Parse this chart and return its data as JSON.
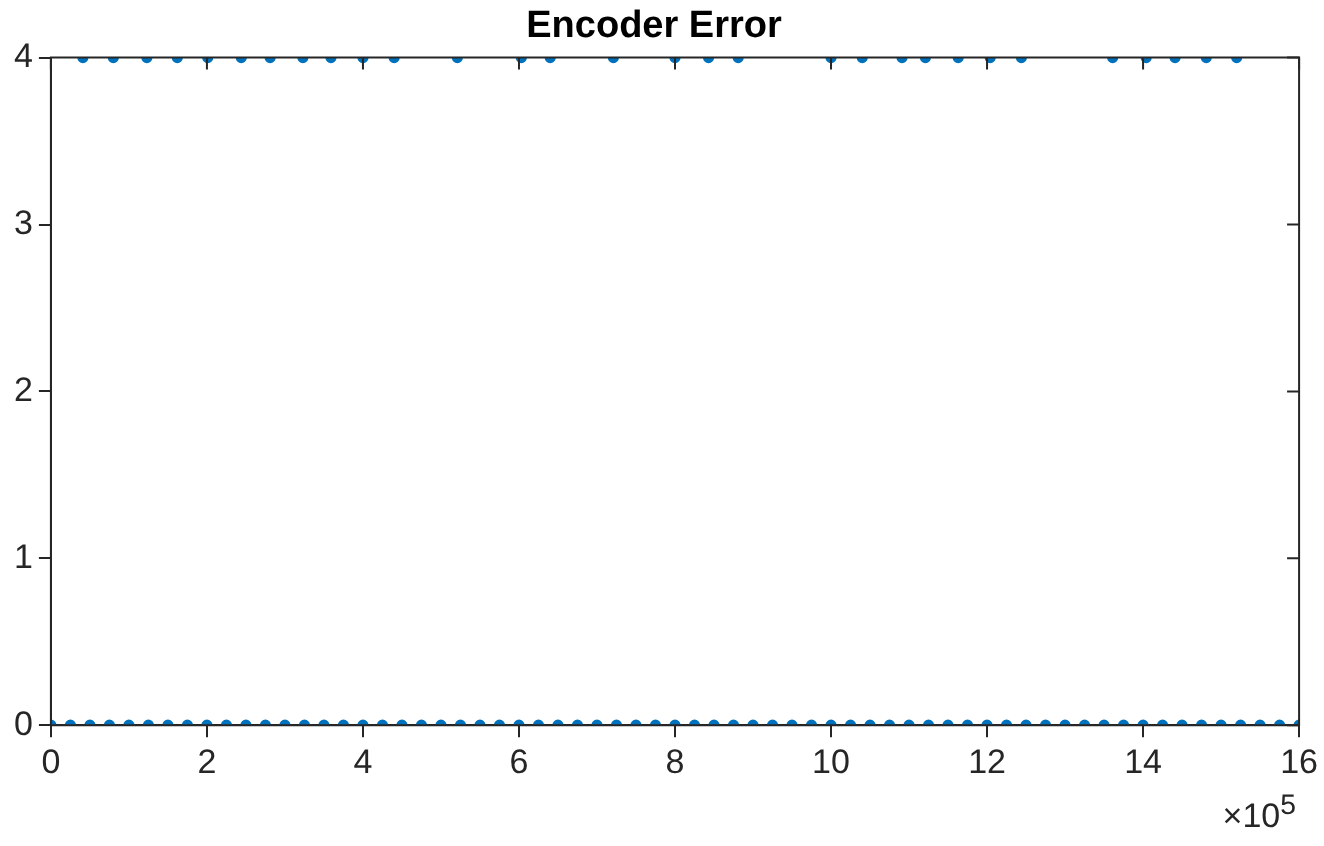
{
  "chart_data": {
    "type": "scatter",
    "title": "Encoder Error",
    "annotations": [
      "×10$^{5}$"
    ],
    "xlim": [
      0,
      16
    ],
    "xticks": [
      0,
      2,
      4,
      6,
      8,
      10,
      12,
      14,
      16
    ],
    "ylim": [
      0,
      4
    ],
    "yticks": [
      0,
      1,
      2,
      3,
      4
    ],
    "grid": false,
    "legend": false,
    "marker": "circle",
    "series": [
      {
        "color": "#0072bd",
        "x": [
          0,
          0.25,
          0.5,
          0.75,
          1,
          1.25,
          1.5,
          1.75,
          2,
          2.25,
          2.5,
          2.75,
          3,
          3.25,
          3.5,
          3.75,
          4,
          4.25,
          4.5,
          4.75,
          5,
          5.25,
          5.5,
          5.75,
          6,
          6.25,
          6.5,
          6.75,
          7,
          7.25,
          7.5,
          7.75,
          8,
          8.25,
          8.5,
          8.75,
          9,
          9.25,
          9.5,
          9.75,
          10,
          10.25,
          10.5,
          10.75,
          11,
          11.25,
          11.5,
          11.75,
          12,
          12.25,
          12.5,
          12.75,
          13,
          13.25,
          13.5,
          13.75,
          14,
          14.25,
          14.5,
          14.75,
          15,
          15.25,
          15.5,
          15.75,
          16
        ],
        "values": [
          0,
          0,
          0,
          0,
          0,
          0,
          0,
          0,
          0,
          0,
          0,
          0,
          0,
          0,
          0,
          0,
          0,
          0,
          0,
          0,
          0,
          0,
          0,
          0,
          0,
          0,
          0,
          0,
          0,
          0,
          0,
          0,
          0,
          0,
          0,
          0,
          0,
          0,
          0,
          0,
          0,
          0,
          0,
          0,
          0,
          0,
          0,
          0,
          0,
          0,
          0,
          0,
          0,
          0,
          0,
          0,
          0,
          0,
          0,
          0,
          0,
          0,
          0,
          0,
          0
        ]
      },
      {
        "color": "#0072bd",
        "x": [
          0.41,
          0.8,
          1.23,
          1.62,
          2.01,
          2.44,
          2.81,
          3.23,
          3.59,
          4,
          4.4,
          5.21,
          6.03,
          6.4,
          7.21,
          8,
          8.43,
          8.81,
          10,
          10.4,
          10.91,
          11.21,
          11.63,
          12.04,
          12.44,
          13.61,
          14.04,
          14.41,
          14.81,
          15.2
        ],
        "values": [
          4,
          4,
          4,
          4,
          4,
          4,
          4,
          4,
          4,
          4,
          4,
          4,
          4,
          4,
          4,
          4,
          4,
          4,
          4,
          4,
          4,
          4,
          4,
          4,
          4,
          4,
          4,
          4,
          4,
          4
        ]
      }
    ]
  }
}
